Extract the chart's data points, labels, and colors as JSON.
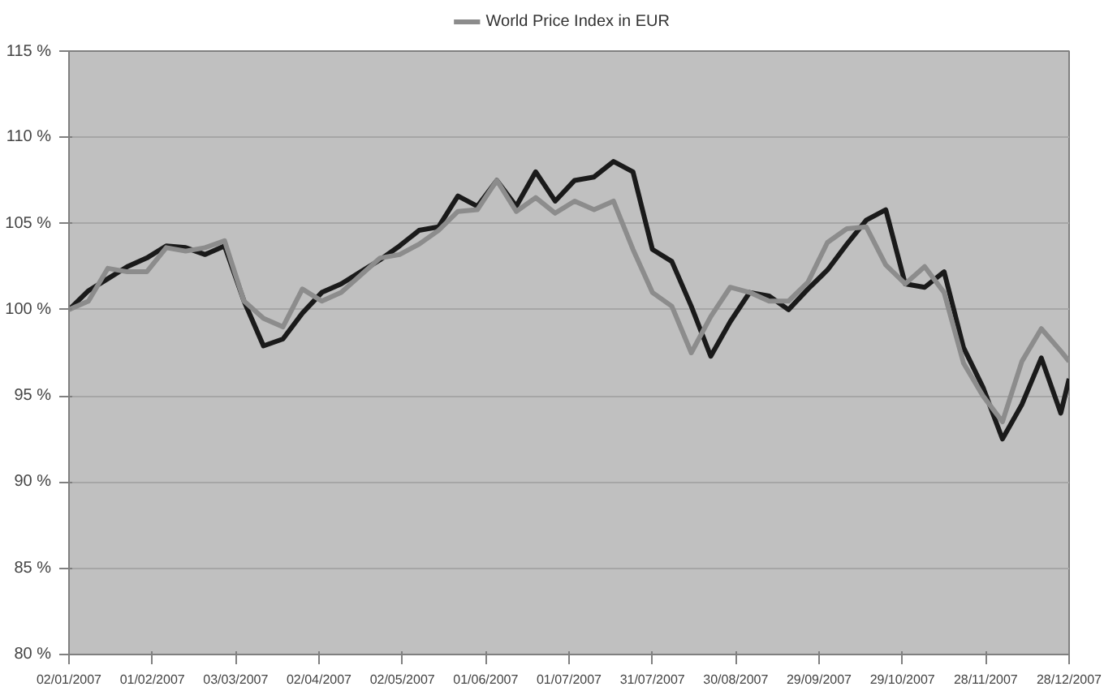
{
  "chart_data": {
    "type": "line",
    "legend": "top",
    "grid": "y",
    "line_style": "solid",
    "marker": "none",
    "x": [
      "2007-01-02",
      "2007-01-09",
      "2007-01-16",
      "2007-01-23",
      "2007-01-30",
      "2007-02-06",
      "2007-02-13",
      "2007-02-20",
      "2007-02-27",
      "2007-03-06",
      "2007-03-13",
      "2007-03-20",
      "2007-03-27",
      "2007-04-03",
      "2007-04-10",
      "2007-04-17",
      "2007-04-24",
      "2007-05-01",
      "2007-05-08",
      "2007-05-15",
      "2007-05-22",
      "2007-05-29",
      "2007-06-05",
      "2007-06-12",
      "2007-06-19",
      "2007-06-26",
      "2007-07-03",
      "2007-07-10",
      "2007-07-17",
      "2007-07-24",
      "2007-07-31",
      "2007-08-07",
      "2007-08-14",
      "2007-08-21",
      "2007-08-28",
      "2007-09-04",
      "2007-09-11",
      "2007-09-18",
      "2007-09-25",
      "2007-10-02",
      "2007-10-09",
      "2007-10-16",
      "2007-10-23",
      "2007-10-30",
      "2007-11-06",
      "2007-11-13",
      "2007-11-20",
      "2007-11-27",
      "2007-12-04",
      "2007-12-11",
      "2007-12-18",
      "2007-12-25",
      "2007-12-28"
    ],
    "series": [
      {
        "color": "#1a1a1a",
        "values": [
          100,
          101.1,
          101.8,
          102.5,
          103,
          103.7,
          103.6,
          103.2,
          103.7,
          100.5,
          97.9,
          98.3,
          99.8,
          101,
          101.5,
          102.2,
          102.9,
          103.7,
          104.6,
          104.8,
          106.6,
          106,
          107.5,
          106,
          108,
          106.3,
          107.5,
          107.7,
          108.6,
          108,
          103.5,
          102.8,
          100.2,
          97.3,
          99.3,
          101,
          100.8,
          100,
          101.2,
          102.3,
          103.8,
          105.2,
          105.8,
          101.5,
          101.3,
          102.2,
          97.8,
          95.5,
          92.5,
          94.5,
          97.2,
          94,
          96
        ]
      },
      {
        "name": "World Price Index in EUR",
        "color": "#8c8c8c",
        "values": [
          100,
          100.5,
          102.4,
          102.2,
          102.2,
          103.6,
          103.4,
          103.6,
          104,
          100.5,
          99.5,
          99,
          101.2,
          100.5,
          101,
          102,
          103,
          103.2,
          103.8,
          104.6,
          105.7,
          105.8,
          107.5,
          105.7,
          106.5,
          105.6,
          106.3,
          105.8,
          106.3,
          103.5,
          101,
          100.2,
          97.5,
          99.6,
          101.3,
          101,
          100.5,
          100.5,
          101.6,
          103.9,
          104.7,
          104.8,
          102.6,
          101.5,
          102.5,
          101,
          96.9,
          95,
          93.5,
          97,
          98.9,
          97.6,
          97
        ]
      }
    ],
    "xlim": [
      "2007-01-02",
      "2007-12-28"
    ],
    "xticks": [
      {
        "value": "2007-01-02",
        "label": "02/01/2007"
      },
      {
        "value": "2007-02-01",
        "label": "01/02/2007"
      },
      {
        "value": "2007-03-03",
        "label": "03/03/2007"
      },
      {
        "value": "2007-04-02",
        "label": "02/04/2007"
      },
      {
        "value": "2007-05-02",
        "label": "02/05/2007"
      },
      {
        "value": "2007-06-01",
        "label": "01/06/2007"
      },
      {
        "value": "2007-07-01",
        "label": "01/07/2007"
      },
      {
        "value": "2007-07-31",
        "label": "31/07/2007"
      },
      {
        "value": "2007-08-30",
        "label": "30/08/2007"
      },
      {
        "value": "2007-09-29",
        "label": "29/09/2007"
      },
      {
        "value": "2007-10-29",
        "label": "29/10/2007"
      },
      {
        "value": "2007-11-28",
        "label": "28/11/2007"
      },
      {
        "value": "2007-12-28",
        "label": "28/12/2007"
      }
    ],
    "ylim": [
      80,
      115
    ],
    "yticks": [
      {
        "value": 80,
        "label": "80 %"
      },
      {
        "value": 85,
        "label": "85 %"
      },
      {
        "value": 90,
        "label": "90 %"
      },
      {
        "value": 95,
        "label": "95 %"
      },
      {
        "value": 100,
        "label": "100 %"
      },
      {
        "value": 105,
        "label": "105 %"
      },
      {
        "value": 110,
        "label": "110 %"
      },
      {
        "value": 115,
        "label": "115 %"
      }
    ]
  }
}
